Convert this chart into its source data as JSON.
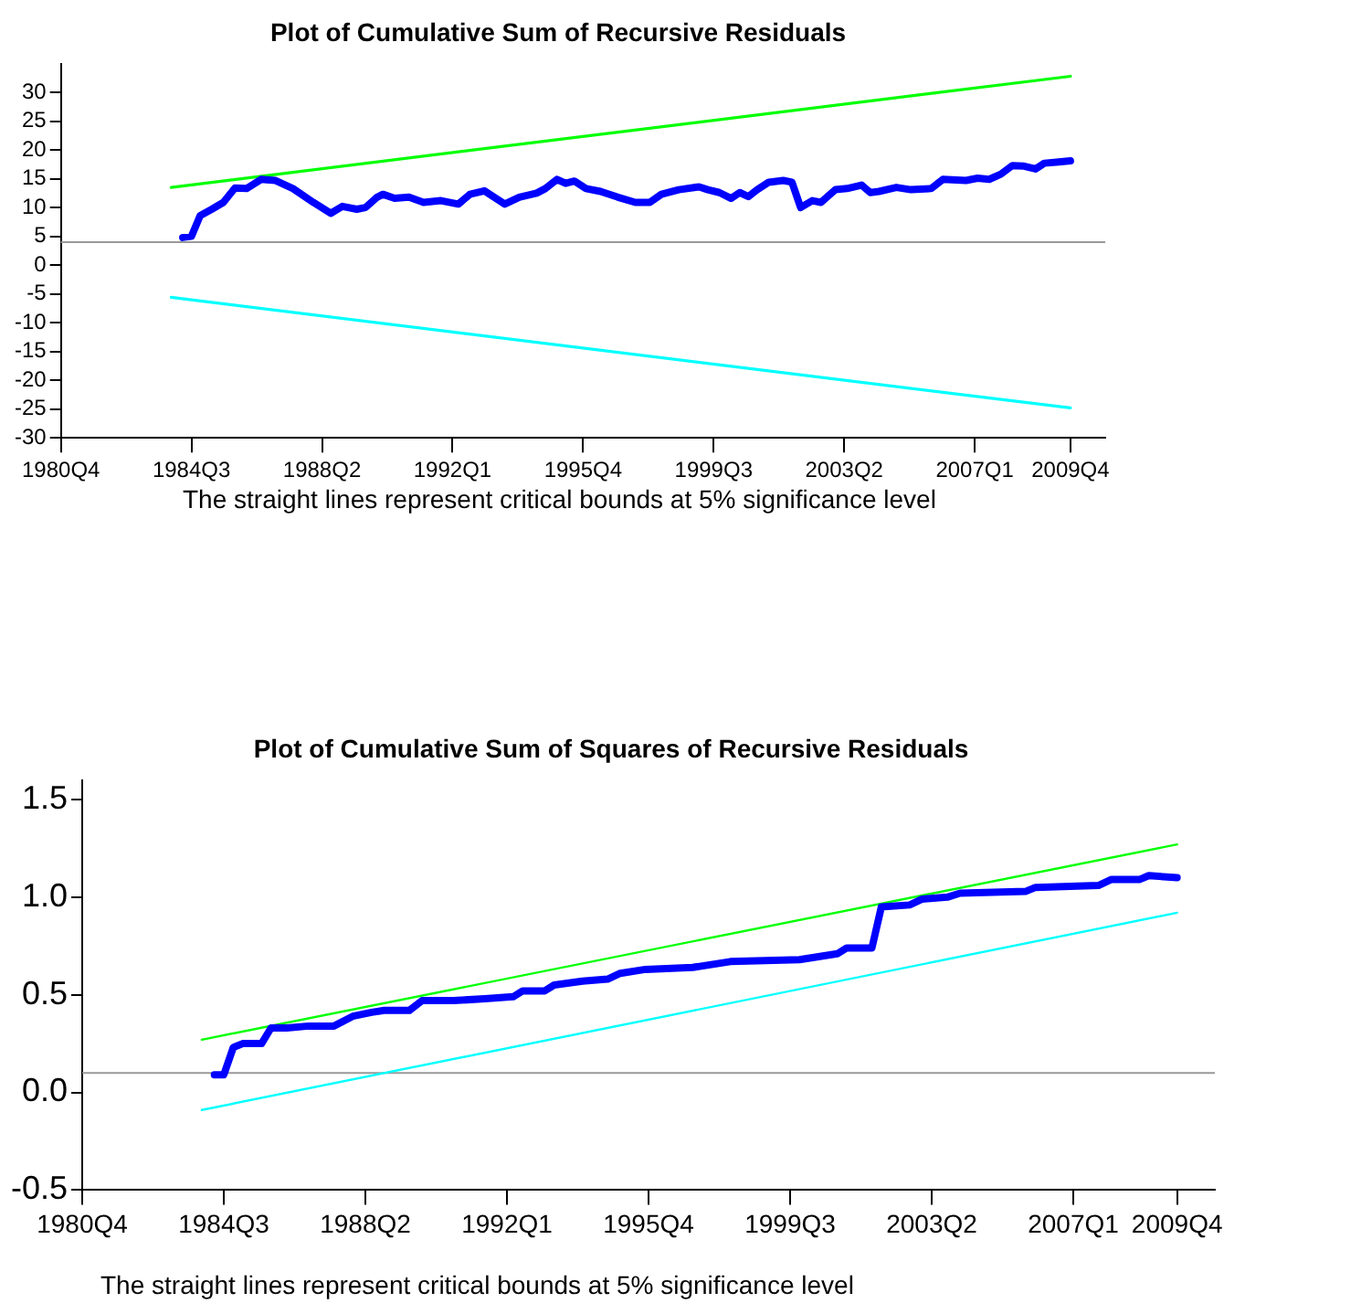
{
  "chart_data": [
    {
      "type": "line",
      "title": "Plot of Cumulative Sum of Recursive Residuals",
      "annotations": [
        "The straight lines represent critical bounds at 5% significance level"
      ],
      "xlim": [
        "1980-10",
        "2010-10"
      ],
      "xticks": [
        {
          "value": "1980-10",
          "label": "1980Q4"
        },
        {
          "value": "1984-07",
          "label": "1984Q3"
        },
        {
          "value": "1988-04",
          "label": "1988Q2"
        },
        {
          "value": "1992-01",
          "label": "1992Q1"
        },
        {
          "value": "1995-10",
          "label": "1995Q4"
        },
        {
          "value": "1999-07",
          "label": "1999Q3"
        },
        {
          "value": "2003-04",
          "label": "2003Q2"
        },
        {
          "value": "2007-01",
          "label": "2007Q1"
        },
        {
          "value": "2009-10",
          "label": "2009Q4"
        }
      ],
      "ylim": [
        -30,
        35
      ],
      "yticks": [
        -30,
        -25,
        -20,
        -15,
        -10,
        -5,
        0,
        5,
        10,
        15,
        20,
        25,
        30
      ],
      "grid": false,
      "legend": false,
      "marker": "none",
      "line_style": "solid",
      "ref_lines": [
        {
          "axis": "y",
          "value": 4,
          "color": "#999999"
        }
      ],
      "series": [
        {
          "color": "#0000ff",
          "x": [
            "1984-04",
            "1984-07",
            "1984-10",
            "1985-02",
            "1985-06",
            "1985-10",
            "1986-02",
            "1986-07",
            "1986-12",
            "1987-06",
            "1988-01",
            "1988-07",
            "1988-11",
            "1989-04",
            "1989-07",
            "1989-11",
            "1990-01",
            "1990-05",
            "1990-10",
            "1991-03",
            "1991-09",
            "1992-03",
            "1992-07",
            "1992-12",
            "1993-07",
            "1993-12",
            "1994-06",
            "1994-09",
            "1995-01",
            "1995-04",
            "1995-07",
            "1995-11",
            "1996-04",
            "1996-10",
            "1997-04",
            "1997-09",
            "1998-01",
            "1998-07",
            "1999-02",
            "1999-05",
            "1999-09",
            "2000-01",
            "2000-04",
            "2000-07",
            "2000-10",
            "2001-02",
            "2001-07",
            "2001-10",
            "2002-01",
            "2002-05",
            "2002-08",
            "2003-01",
            "2003-05",
            "2003-10",
            "2004-01",
            "2004-04",
            "2004-10",
            "2005-03",
            "2005-10",
            "2006-02",
            "2006-10",
            "2007-02",
            "2007-06",
            "2007-10",
            "2008-02",
            "2008-06",
            "2008-10",
            "2009-01",
            "2009-06",
            "2009-10"
          ],
          "values": [
            4.8,
            5.0,
            8.6,
            9.7,
            10.9,
            13.4,
            13.3,
            14.9,
            14.7,
            13.3,
            10.9,
            9.0,
            10.2,
            9.7,
            10.0,
            11.8,
            12.3,
            11.6,
            11.8,
            10.9,
            11.2,
            10.6,
            12.3,
            12.9,
            10.6,
            11.8,
            12.5,
            13.3,
            14.9,
            14.2,
            14.6,
            13.3,
            12.8,
            11.8,
            10.9,
            10.9,
            12.3,
            13.1,
            13.6,
            13.1,
            12.6,
            11.6,
            12.6,
            11.9,
            13.1,
            14.4,
            14.7,
            14.4,
            10.0,
            11.2,
            10.9,
            13.1,
            13.3,
            13.9,
            12.6,
            12.8,
            13.5,
            13.1,
            13.3,
            14.9,
            14.7,
            15.1,
            14.9,
            15.8,
            17.3,
            17.2,
            16.7,
            17.7,
            17.9,
            18.1
          ]
        },
        {
          "color": "#00ff00",
          "x": [
            "1983-12",
            "2009-10"
          ],
          "values": [
            13.5,
            32.8
          ]
        },
        {
          "color": "#00ffff",
          "x": [
            "1983-12",
            "2009-10"
          ],
          "values": [
            -5.6,
            -24.8
          ]
        }
      ]
    },
    {
      "type": "line",
      "title": "Plot of Cumulative Sum of Squares of Recursive Residuals",
      "annotations": [
        "The straight lines represent critical bounds at 5% significance level"
      ],
      "xlim": [
        "1980-10",
        "2010-10"
      ],
      "xticks": [
        {
          "value": "1980-10",
          "label": "1980Q4"
        },
        {
          "value": "1984-07",
          "label": "1984Q3"
        },
        {
          "value": "1988-04",
          "label": "1988Q2"
        },
        {
          "value": "1992-01",
          "label": "1992Q1"
        },
        {
          "value": "1995-10",
          "label": "1995Q4"
        },
        {
          "value": "1999-07",
          "label": "1999Q3"
        },
        {
          "value": "2003-04",
          "label": "2003Q2"
        },
        {
          "value": "2007-01",
          "label": "2007Q1"
        },
        {
          "value": "2009-10",
          "label": "2009Q4"
        }
      ],
      "ylim": [
        -0.5,
        1.6
      ],
      "yticks": [
        {
          "value": -0.5,
          "label": "-0.5"
        },
        {
          "value": 0,
          "label": "0.0"
        },
        {
          "value": 0.5,
          "label": "0.5"
        },
        {
          "value": 1,
          "label": "1.0"
        },
        {
          "value": 1.5,
          "label": "1.5"
        }
      ],
      "grid": false,
      "legend": false,
      "marker": "none",
      "line_style": "solid",
      "ref_lines": [
        {
          "axis": "y",
          "value": 0.1,
          "color": "#999999"
        }
      ],
      "series": [
        {
          "color": "#0000ff",
          "x": [
            "1984-04",
            "1984-07",
            "1984-10",
            "1985-01",
            "1985-07",
            "1985-10",
            "1986-03",
            "1986-10",
            "1987-06",
            "1987-12",
            "1988-06",
            "1988-10",
            "1989-06",
            "1989-10",
            "1990-08",
            "1991-06",
            "1992-03",
            "1992-06",
            "1993-01",
            "1993-04",
            "1994-01",
            "1994-09",
            "1995-01",
            "1995-09",
            "1996-12",
            "1997-12",
            "1999-10",
            "2000-10",
            "2001-01",
            "2001-09",
            "2001-12",
            "2002-09",
            "2003-01",
            "2003-09",
            "2004-01",
            "2005-10",
            "2006-01",
            "2007-09",
            "2008-01",
            "2008-10",
            "2009-01",
            "2009-10"
          ],
          "values": [
            0.09,
            0.09,
            0.23,
            0.25,
            0.25,
            0.33,
            0.33,
            0.34,
            0.34,
            0.39,
            0.41,
            0.42,
            0.42,
            0.47,
            0.47,
            0.48,
            0.49,
            0.52,
            0.52,
            0.55,
            0.57,
            0.58,
            0.61,
            0.63,
            0.64,
            0.67,
            0.68,
            0.71,
            0.74,
            0.74,
            0.95,
            0.96,
            0.99,
            1.0,
            1.02,
            1.03,
            1.05,
            1.06,
            1.09,
            1.09,
            1.11,
            1.1
          ]
        },
        {
          "color": "#00ff00",
          "x": [
            "1983-12",
            "2009-10"
          ],
          "values": [
            0.27,
            1.27
          ]
        },
        {
          "color": "#00ffff",
          "x": [
            "1983-12",
            "2009-10"
          ],
          "values": [
            -0.09,
            0.92
          ]
        }
      ]
    }
  ]
}
